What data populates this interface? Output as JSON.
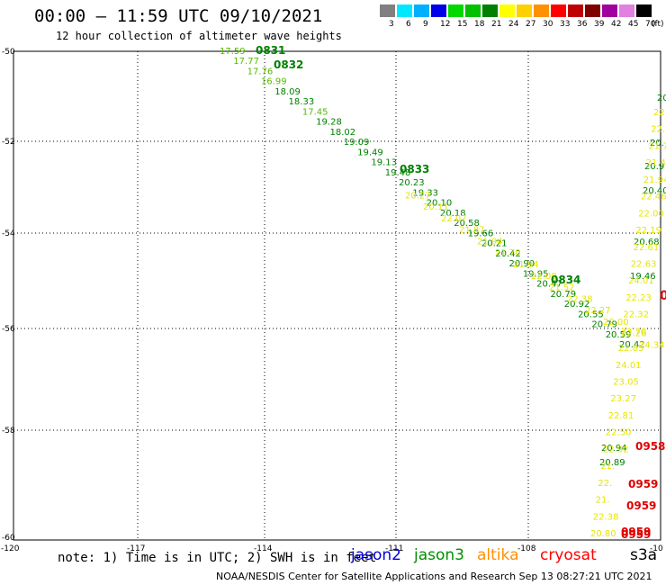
{
  "header": {
    "title": "00:00 – 11:59 UTC 09/10/2021",
    "subtitle": "12 hour collection of altimeter wave heights"
  },
  "legend": {
    "unit": "(ft)",
    "items": [
      {
        "label": "3",
        "color": "#808080"
      },
      {
        "label": "6",
        "color": "#00e8ff"
      },
      {
        "label": "9",
        "color": "#00b0ff"
      },
      {
        "label": "12",
        "color": "#0000e8"
      },
      {
        "label": "15",
        "color": "#00d800"
      },
      {
        "label": "18",
        "color": "#00c000"
      },
      {
        "label": "21",
        "color": "#008000"
      },
      {
        "label": "24",
        "color": "#ffff00"
      },
      {
        "label": "27",
        "color": "#ffd000"
      },
      {
        "label": "30",
        "color": "#ff9000"
      },
      {
        "label": "33",
        "color": "#ff0000"
      },
      {
        "label": "36",
        "color": "#c00000"
      },
      {
        "label": "39",
        "color": "#800000"
      },
      {
        "label": "42",
        "color": "#a000a0"
      },
      {
        "label": "45",
        "color": "#e080e0"
      },
      {
        "label": "70",
        "color": "#000000"
      }
    ]
  },
  "map": {
    "lat_labels": [
      "-50",
      "-52",
      "-54",
      "-56",
      "-58",
      "-60"
    ],
    "lon_labels": [
      "-120",
      "-117",
      "-114",
      "-111",
      "-108",
      "-10"
    ],
    "track_a": {
      "color": "#008000",
      "values": [
        "17.59",
        "17.77",
        "17.76",
        "16.99",
        "18.09",
        "18.33",
        "17.45",
        "19.28",
        "18.02",
        "19.09",
        "19.49",
        "19.13",
        "19.48",
        "20.23",
        "19.33",
        "20.10",
        "20.18",
        "20.58",
        "19.66",
        "20.21",
        "20.42",
        "20.90",
        "19.95",
        "20.47",
        "20.79",
        "20.92",
        "20.55",
        "20.79",
        "20.59",
        "20.42"
      ],
      "highlight_colors": [
        "#55bb00",
        "#55bb00",
        "#55bb00",
        "#55bb00",
        "#008000",
        "#008000",
        "#55bb00",
        "#008000",
        "#008000",
        "#008000",
        "#008000",
        "#008000",
        "#008000",
        "#008000",
        "#008000",
        "#008000",
        "#008000",
        "#008000",
        "#008000",
        "#008000",
        "#008000",
        "#008000",
        "#008000",
        "#008000",
        "#008000",
        "#008000",
        "#008000",
        "#008000",
        "#008000",
        "#008000"
      ]
    },
    "track_a_yellow": [
      "20.27",
      "20.11",
      "22.07",
      "21.87",
      "21.94",
      "21.70",
      "21.94",
      "22.00",
      "21.52",
      "22.38",
      "22.27",
      "22.00",
      "22.26",
      "24.34"
    ],
    "time_marks_a": [
      "0831",
      "0832",
      "0833",
      "0834"
    ],
    "track_b": {
      "green_values": [
        "20.",
        "20.",
        "20.9",
        "20.40",
        "20.68",
        "19.46",
        "20.94",
        "20.89"
      ],
      "yellow_values": [
        "22.40",
        "22.",
        "21.72",
        "21.44",
        "21.94",
        "22.46",
        "22.00",
        "22.19",
        "22.61",
        "22.63",
        "24.01",
        "22.23",
        "22.32",
        "23.70",
        "22.85",
        "24.01",
        "23.05",
        "23.27",
        "22.81",
        "22.50",
        "22.92",
        "21.",
        "22.",
        "21.",
        "22.38",
        "20.80"
      ]
    },
    "time_marks_b": [
      "0958",
      "0959",
      "0959",
      "0959",
      "0959"
    ]
  },
  "footer": {
    "note": "note: 1) Time is in UTC; 2) SWH is in feet",
    "satellites": [
      {
        "name": "jason2",
        "color": "#0000e0"
      },
      {
        "name": "jason3",
        "color": "#009000"
      },
      {
        "name": "altika",
        "color": "#ff9000"
      },
      {
        "name": "cryosat",
        "color": "#ff0000"
      },
      {
        "name": "s3a",
        "color": "#000000"
      }
    ],
    "credit": "NOAA/NESDIS Center for Satellite Applications and Research    Sep 13 08:27:21 UTC 2021"
  }
}
